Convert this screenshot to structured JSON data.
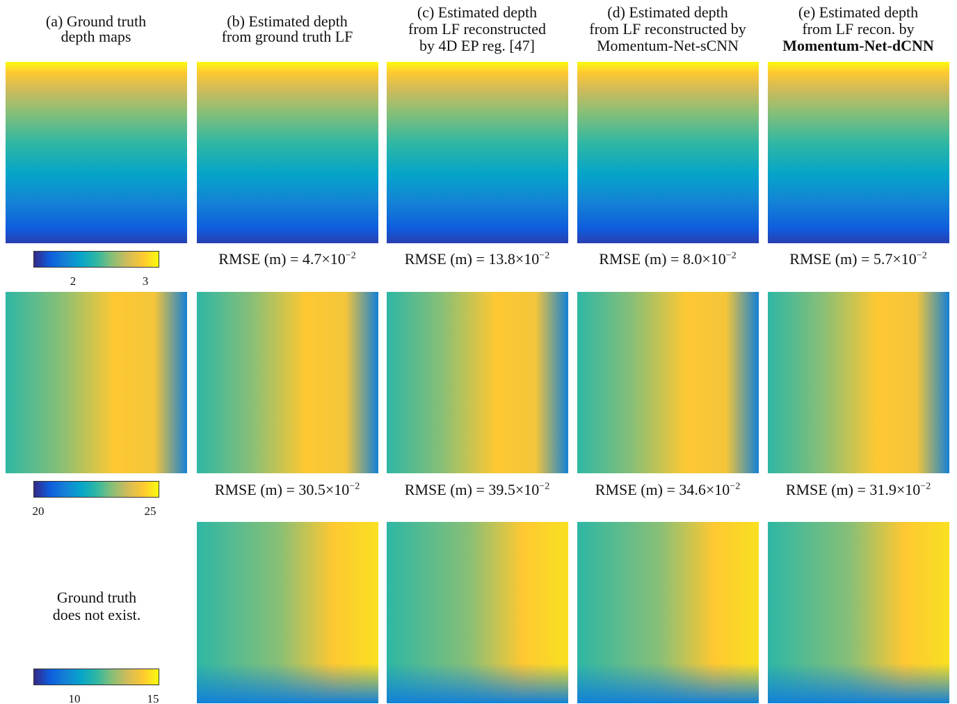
{
  "columns": [
    {
      "lines": [
        "(a) Ground truth",
        "depth maps"
      ]
    },
    {
      "lines": [
        "(b) Estimated depth",
        "from ground truth LF"
      ]
    },
    {
      "lines": [
        "(c) Estimated depth",
        "from LF reconstructed",
        "by 4D EP reg. [47]"
      ]
    },
    {
      "lines": [
        "(d) Estimated depth",
        "from LF reconstructed by",
        "Momentum-Net-sCNN"
      ]
    },
    {
      "lines": [
        "(e) Estimated depth",
        "from LF recon. by"
      ],
      "bold_line": "Momentum-Net-dCNN"
    }
  ],
  "rows": [
    {
      "colorbar_ticks": [
        "2",
        "3"
      ],
      "rmse": [
        {
          "label": "RMSE (m) =",
          "value": "4.7",
          "base": "×10",
          "exponent": "−2"
        },
        {
          "label": "RMSE (m) =",
          "value": "13.8",
          "base": "×10",
          "exponent": "−2"
        },
        {
          "label": "RMSE (m) =",
          "value": "8.0",
          "base": "×10",
          "exponent": "−2"
        },
        {
          "label": "RMSE (m) =",
          "value": "5.7",
          "base": "×10",
          "exponent": "−2"
        }
      ]
    },
    {
      "colorbar_ticks": [
        "20",
        "25"
      ],
      "rmse": [
        {
          "label": "RMSE (m) =",
          "value": "30.5",
          "base": "×10",
          "exponent": "−2"
        },
        {
          "label": "RMSE (m) =",
          "value": "39.5",
          "base": "×10",
          "exponent": "−2"
        },
        {
          "label": "RMSE (m) =",
          "value": "34.6",
          "base": "×10",
          "exponent": "−2"
        },
        {
          "label": "RMSE (m) =",
          "value": "31.9",
          "base": "×10",
          "exponent": "−2"
        }
      ]
    },
    {
      "colorbar_ticks": [
        "10",
        "15"
      ],
      "note": [
        "Ground truth",
        "does not exist."
      ]
    }
  ]
}
